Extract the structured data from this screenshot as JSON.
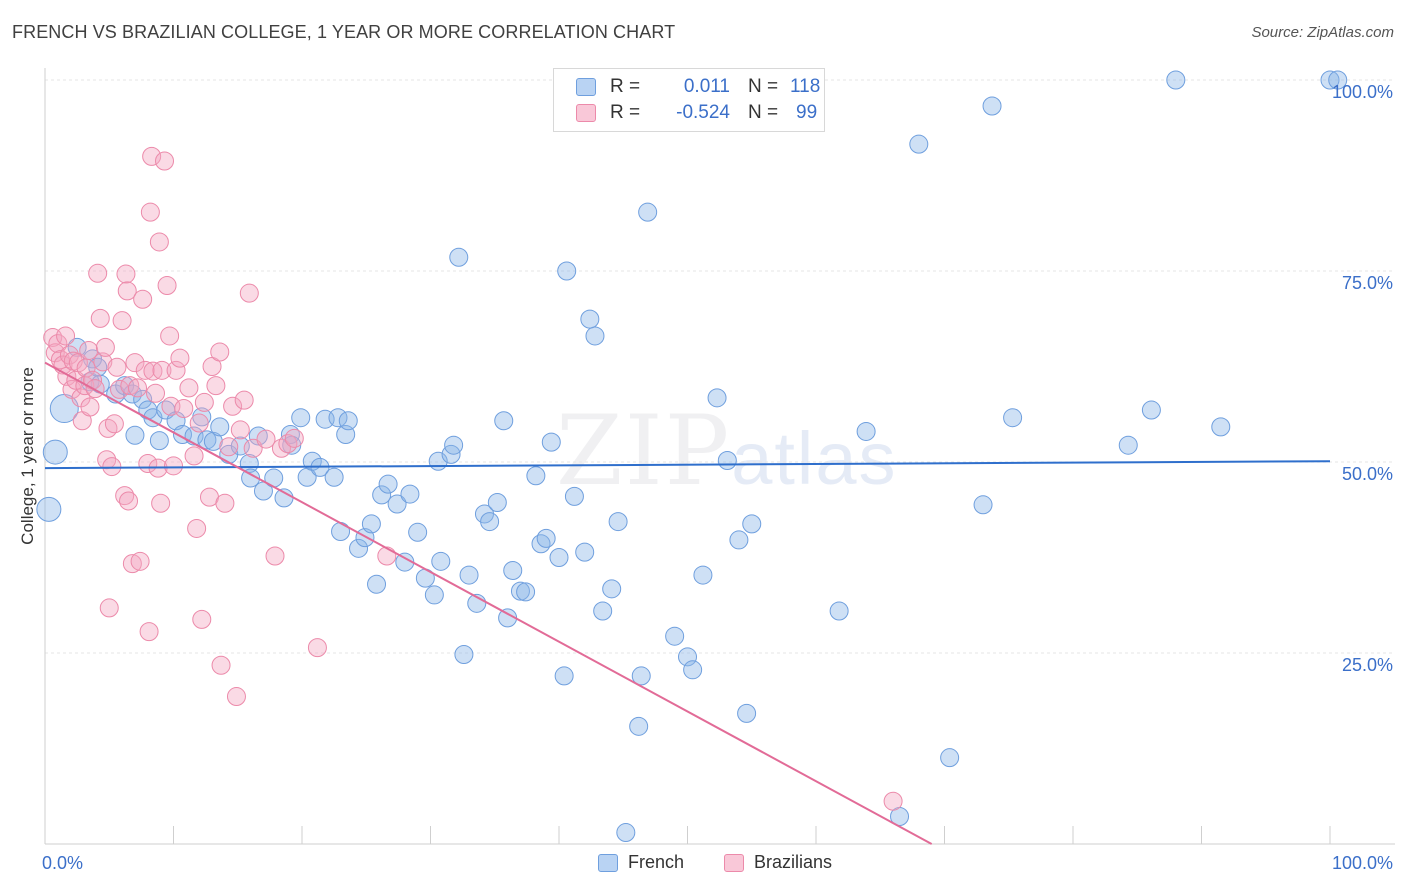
{
  "title": "FRENCH VS BRAZILIAN COLLEGE, 1 YEAR OR MORE CORRELATION CHART",
  "source": "Source: ZipAtlas.com",
  "watermark": {
    "zip": "ZIP",
    "atlas": "atlas"
  },
  "legend": {
    "rows": [
      {
        "r_label": "R =",
        "r_value": "0.011",
        "n_label": "N =",
        "n_value": "118",
        "color": "#8ab4e8"
      },
      {
        "r_label": "R =",
        "r_value": "-0.524",
        "n_label": "N =",
        "n_value": "99",
        "color": "#f4a6c0"
      }
    ]
  },
  "bottom_legend": [
    {
      "label": "French",
      "color": "#8ab4e8"
    },
    {
      "label": "Brazilians",
      "color": "#f4a6c0"
    }
  ],
  "chart_data": {
    "type": "scatter",
    "title": "FRENCH VS BRAZILIAN COLLEGE, 1 YEAR OR MORE CORRELATION CHART",
    "xlabel": "",
    "ylabel": "College, 1 year or more",
    "xlim": [
      0,
      100
    ],
    "ylim": [
      0,
      100
    ],
    "x_tick_labels": [
      "0.0%",
      "100.0%"
    ],
    "y_tick_labels": [
      "100.0%",
      "75.0%",
      "50.0%",
      "25.0%"
    ],
    "y_ticks": [
      100,
      75,
      50,
      25
    ],
    "grid": true,
    "legend_position": "top-center",
    "series": [
      {
        "name": "French",
        "color": "#8ab4e8",
        "stroke": "#6f9fde",
        "trend": {
          "x": [
            0,
            100
          ],
          "y": [
            49.2,
            50.1
          ],
          "color": "#2f6fcc"
        },
        "points": [
          [
            0.3,
            43.8
          ],
          [
            0.8,
            51.3
          ],
          [
            1.5,
            57.0
          ],
          [
            2.5,
            65.0
          ],
          [
            3.5,
            60.5
          ],
          [
            3.7,
            63.5
          ],
          [
            4.1,
            62.4
          ],
          [
            4.3,
            60.2
          ],
          [
            5.5,
            58.9
          ],
          [
            6.2,
            60.0
          ],
          [
            6.8,
            58.9
          ],
          [
            7.0,
            53.5
          ],
          [
            7.6,
            58.2
          ],
          [
            8.0,
            56.8
          ],
          [
            8.4,
            55.8
          ],
          [
            8.9,
            52.8
          ],
          [
            9.4,
            56.8
          ],
          [
            10.2,
            55.4
          ],
          [
            10.7,
            53.6
          ],
          [
            11.6,
            53.4
          ],
          [
            12.2,
            55.9
          ],
          [
            12.6,
            52.9
          ],
          [
            13.1,
            52.7
          ],
          [
            13.6,
            54.6
          ],
          [
            14.3,
            51.0
          ],
          [
            15.2,
            52.1
          ],
          [
            15.9,
            49.8
          ],
          [
            16.0,
            47.9
          ],
          [
            16.6,
            53.4
          ],
          [
            17.0,
            46.2
          ],
          [
            17.8,
            47.9
          ],
          [
            18.6,
            45.3
          ],
          [
            19.1,
            53.6
          ],
          [
            19.2,
            52.2
          ],
          [
            19.9,
            55.8
          ],
          [
            20.4,
            48.0
          ],
          [
            20.8,
            50.1
          ],
          [
            21.4,
            49.3
          ],
          [
            21.8,
            55.6
          ],
          [
            22.5,
            48.0
          ],
          [
            22.8,
            55.8
          ],
          [
            23.0,
            40.9
          ],
          [
            23.4,
            53.6
          ],
          [
            23.6,
            55.4
          ],
          [
            24.4,
            38.7
          ],
          [
            24.9,
            40.1
          ],
          [
            25.4,
            41.9
          ],
          [
            25.8,
            34.0
          ],
          [
            26.2,
            45.7
          ],
          [
            26.7,
            47.1
          ],
          [
            27.4,
            44.5
          ],
          [
            28.0,
            36.9
          ],
          [
            28.4,
            45.8
          ],
          [
            29.0,
            40.8
          ],
          [
            29.6,
            34.8
          ],
          [
            30.3,
            32.6
          ],
          [
            30.6,
            50.1
          ],
          [
            30.8,
            37.0
          ],
          [
            31.6,
            51.0
          ],
          [
            31.8,
            52.2
          ],
          [
            32.2,
            76.8
          ],
          [
            32.6,
            24.8
          ],
          [
            33.0,
            35.2
          ],
          [
            33.6,
            31.5
          ],
          [
            34.2,
            43.2
          ],
          [
            34.6,
            42.2
          ],
          [
            35.2,
            44.7
          ],
          [
            35.7,
            55.4
          ],
          [
            36.0,
            29.6
          ],
          [
            36.4,
            35.8
          ],
          [
            37.0,
            33.1
          ],
          [
            37.4,
            33.0
          ],
          [
            38.2,
            48.2
          ],
          [
            38.6,
            39.3
          ],
          [
            39.0,
            40.0
          ],
          [
            39.4,
            52.6
          ],
          [
            40.0,
            37.5
          ],
          [
            40.4,
            22.0
          ],
          [
            40.6,
            75.0
          ],
          [
            41.2,
            45.5
          ],
          [
            42.0,
            38.2
          ],
          [
            42.4,
            68.7
          ],
          [
            42.8,
            66.5
          ],
          [
            43.4,
            30.5
          ],
          [
            44.1,
            33.4
          ],
          [
            44.6,
            42.2
          ],
          [
            45.2,
            1.5
          ],
          [
            46.2,
            15.4
          ],
          [
            46.4,
            22.0
          ],
          [
            46.9,
            82.7
          ],
          [
            49.0,
            27.2
          ],
          [
            50.0,
            24.5
          ],
          [
            50.4,
            22.8
          ],
          [
            51.2,
            35.2
          ],
          [
            52.3,
            58.4
          ],
          [
            53.1,
            50.2
          ],
          [
            54.0,
            39.8
          ],
          [
            54.6,
            17.1
          ],
          [
            55.0,
            41.9
          ],
          [
            56.6,
            100.0
          ],
          [
            61.8,
            30.5
          ],
          [
            63.9,
            54.0
          ],
          [
            66.5,
            3.6
          ],
          [
            68.0,
            91.6
          ],
          [
            70.4,
            11.3
          ],
          [
            73.0,
            44.4
          ],
          [
            73.7,
            96.6
          ],
          [
            75.3,
            55.8
          ],
          [
            84.3,
            52.2
          ],
          [
            86.1,
            56.8
          ],
          [
            88.0,
            100.0
          ],
          [
            91.5,
            54.6
          ],
          [
            100.0,
            100.0
          ],
          [
            100.6,
            100.0
          ]
        ]
      },
      {
        "name": "Brazilians",
        "color": "#f4a6c0",
        "stroke": "#ec8aaa",
        "trend": {
          "x": [
            0,
            69
          ],
          "y": [
            63.0,
            0.0
          ],
          "color": "#e26b97"
        },
        "points": [
          [
            0.6,
            66.3
          ],
          [
            0.8,
            64.3
          ],
          [
            1.0,
            65.5
          ],
          [
            1.2,
            63.4
          ],
          [
            1.4,
            62.7
          ],
          [
            1.6,
            66.5
          ],
          [
            1.7,
            61.2
          ],
          [
            1.9,
            64.0
          ],
          [
            2.1,
            59.5
          ],
          [
            2.2,
            63.2
          ],
          [
            2.4,
            60.7
          ],
          [
            2.6,
            63.0
          ],
          [
            2.8,
            58.4
          ],
          [
            2.9,
            55.4
          ],
          [
            3.1,
            60.0
          ],
          [
            3.2,
            62.3
          ],
          [
            3.4,
            64.6
          ],
          [
            3.5,
            57.2
          ],
          [
            3.7,
            60.7
          ],
          [
            3.9,
            59.6
          ],
          [
            4.1,
            74.7
          ],
          [
            4.3,
            68.8
          ],
          [
            4.5,
            63.1
          ],
          [
            4.7,
            65.0
          ],
          [
            4.8,
            50.3
          ],
          [
            4.9,
            54.4
          ],
          [
            5.0,
            30.9
          ],
          [
            5.2,
            49.4
          ],
          [
            5.4,
            55.0
          ],
          [
            5.6,
            62.4
          ],
          [
            5.8,
            59.5
          ],
          [
            6.0,
            68.5
          ],
          [
            6.2,
            45.6
          ],
          [
            6.3,
            74.6
          ],
          [
            6.4,
            72.4
          ],
          [
            6.5,
            44.9
          ],
          [
            6.6,
            60.0
          ],
          [
            6.8,
            36.7
          ],
          [
            7.0,
            63.0
          ],
          [
            7.2,
            59.7
          ],
          [
            7.4,
            37.0
          ],
          [
            7.6,
            71.3
          ],
          [
            7.8,
            62.0
          ],
          [
            8.0,
            49.8
          ],
          [
            8.1,
            27.8
          ],
          [
            8.2,
            82.7
          ],
          [
            8.3,
            90.0
          ],
          [
            8.4,
            61.9
          ],
          [
            8.6,
            59.0
          ],
          [
            8.8,
            49.2
          ],
          [
            8.9,
            78.8
          ],
          [
            9.0,
            44.6
          ],
          [
            9.1,
            62.0
          ],
          [
            9.3,
            89.4
          ],
          [
            9.5,
            73.1
          ],
          [
            9.7,
            66.5
          ],
          [
            9.8,
            57.3
          ],
          [
            10.0,
            49.5
          ],
          [
            10.2,
            62.0
          ],
          [
            10.5,
            63.6
          ],
          [
            10.8,
            57.0
          ],
          [
            11.2,
            59.7
          ],
          [
            11.6,
            50.8
          ],
          [
            11.8,
            41.3
          ],
          [
            12.0,
            55.1
          ],
          [
            12.2,
            29.4
          ],
          [
            12.4,
            57.8
          ],
          [
            12.8,
            45.4
          ],
          [
            13.0,
            62.5
          ],
          [
            13.3,
            60.0
          ],
          [
            13.6,
            64.4
          ],
          [
            13.7,
            23.4
          ],
          [
            14.0,
            44.6
          ],
          [
            14.3,
            52.0
          ],
          [
            14.6,
            57.3
          ],
          [
            14.9,
            19.3
          ],
          [
            15.2,
            54.2
          ],
          [
            15.5,
            58.1
          ],
          [
            15.9,
            72.1
          ],
          [
            16.2,
            51.8
          ],
          [
            17.2,
            53.0
          ],
          [
            17.9,
            37.7
          ],
          [
            18.4,
            51.8
          ],
          [
            18.9,
            52.4
          ],
          [
            19.4,
            53.1
          ],
          [
            21.2,
            25.7
          ],
          [
            26.6,
            37.7
          ],
          [
            66.0,
            5.6
          ]
        ]
      }
    ]
  }
}
